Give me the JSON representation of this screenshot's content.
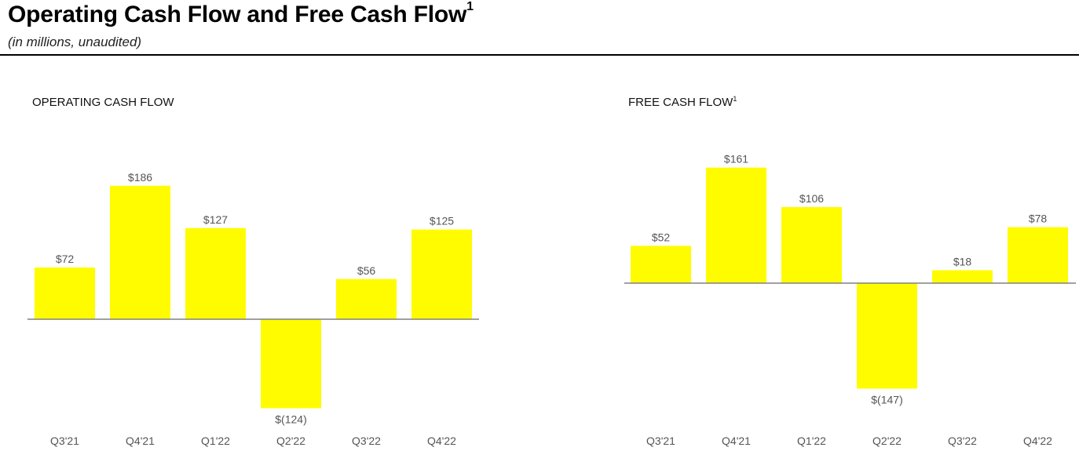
{
  "header": {
    "title": "Operating Cash Flow and Free Cash Flow",
    "title_footnote": "1",
    "subtitle": "(in millions, unaudited)"
  },
  "colors": {
    "bar": "#FFFC00",
    "axis": "#808080"
  },
  "chart_data": [
    {
      "type": "bar",
      "title": "OPERATING CASH FLOW",
      "title_footnote": "",
      "categories": [
        "Q3'21",
        "Q4'21",
        "Q1'22",
        "Q2'22",
        "Q3'22",
        "Q4'22"
      ],
      "values": [
        72,
        186,
        127,
        -124,
        56,
        125
      ],
      "value_labels": [
        "$72",
        "$186",
        "$127",
        "$(124)",
        "$56",
        "$125"
      ],
      "xlabel": "",
      "ylabel": "",
      "ylim": [
        -124,
        186
      ],
      "grid": false
    },
    {
      "type": "bar",
      "title": "FREE CASH FLOW",
      "title_footnote": "1",
      "categories": [
        "Q3'21",
        "Q4'21",
        "Q1'22",
        "Q2'22",
        "Q3'22",
        "Q4'22"
      ],
      "values": [
        52,
        161,
        106,
        -147,
        18,
        78
      ],
      "value_labels": [
        "$52",
        "$161",
        "$106",
        "$(147)",
        "$18",
        "$78"
      ],
      "xlabel": "",
      "ylabel": "",
      "ylim": [
        -147,
        161
      ],
      "grid": false
    }
  ]
}
